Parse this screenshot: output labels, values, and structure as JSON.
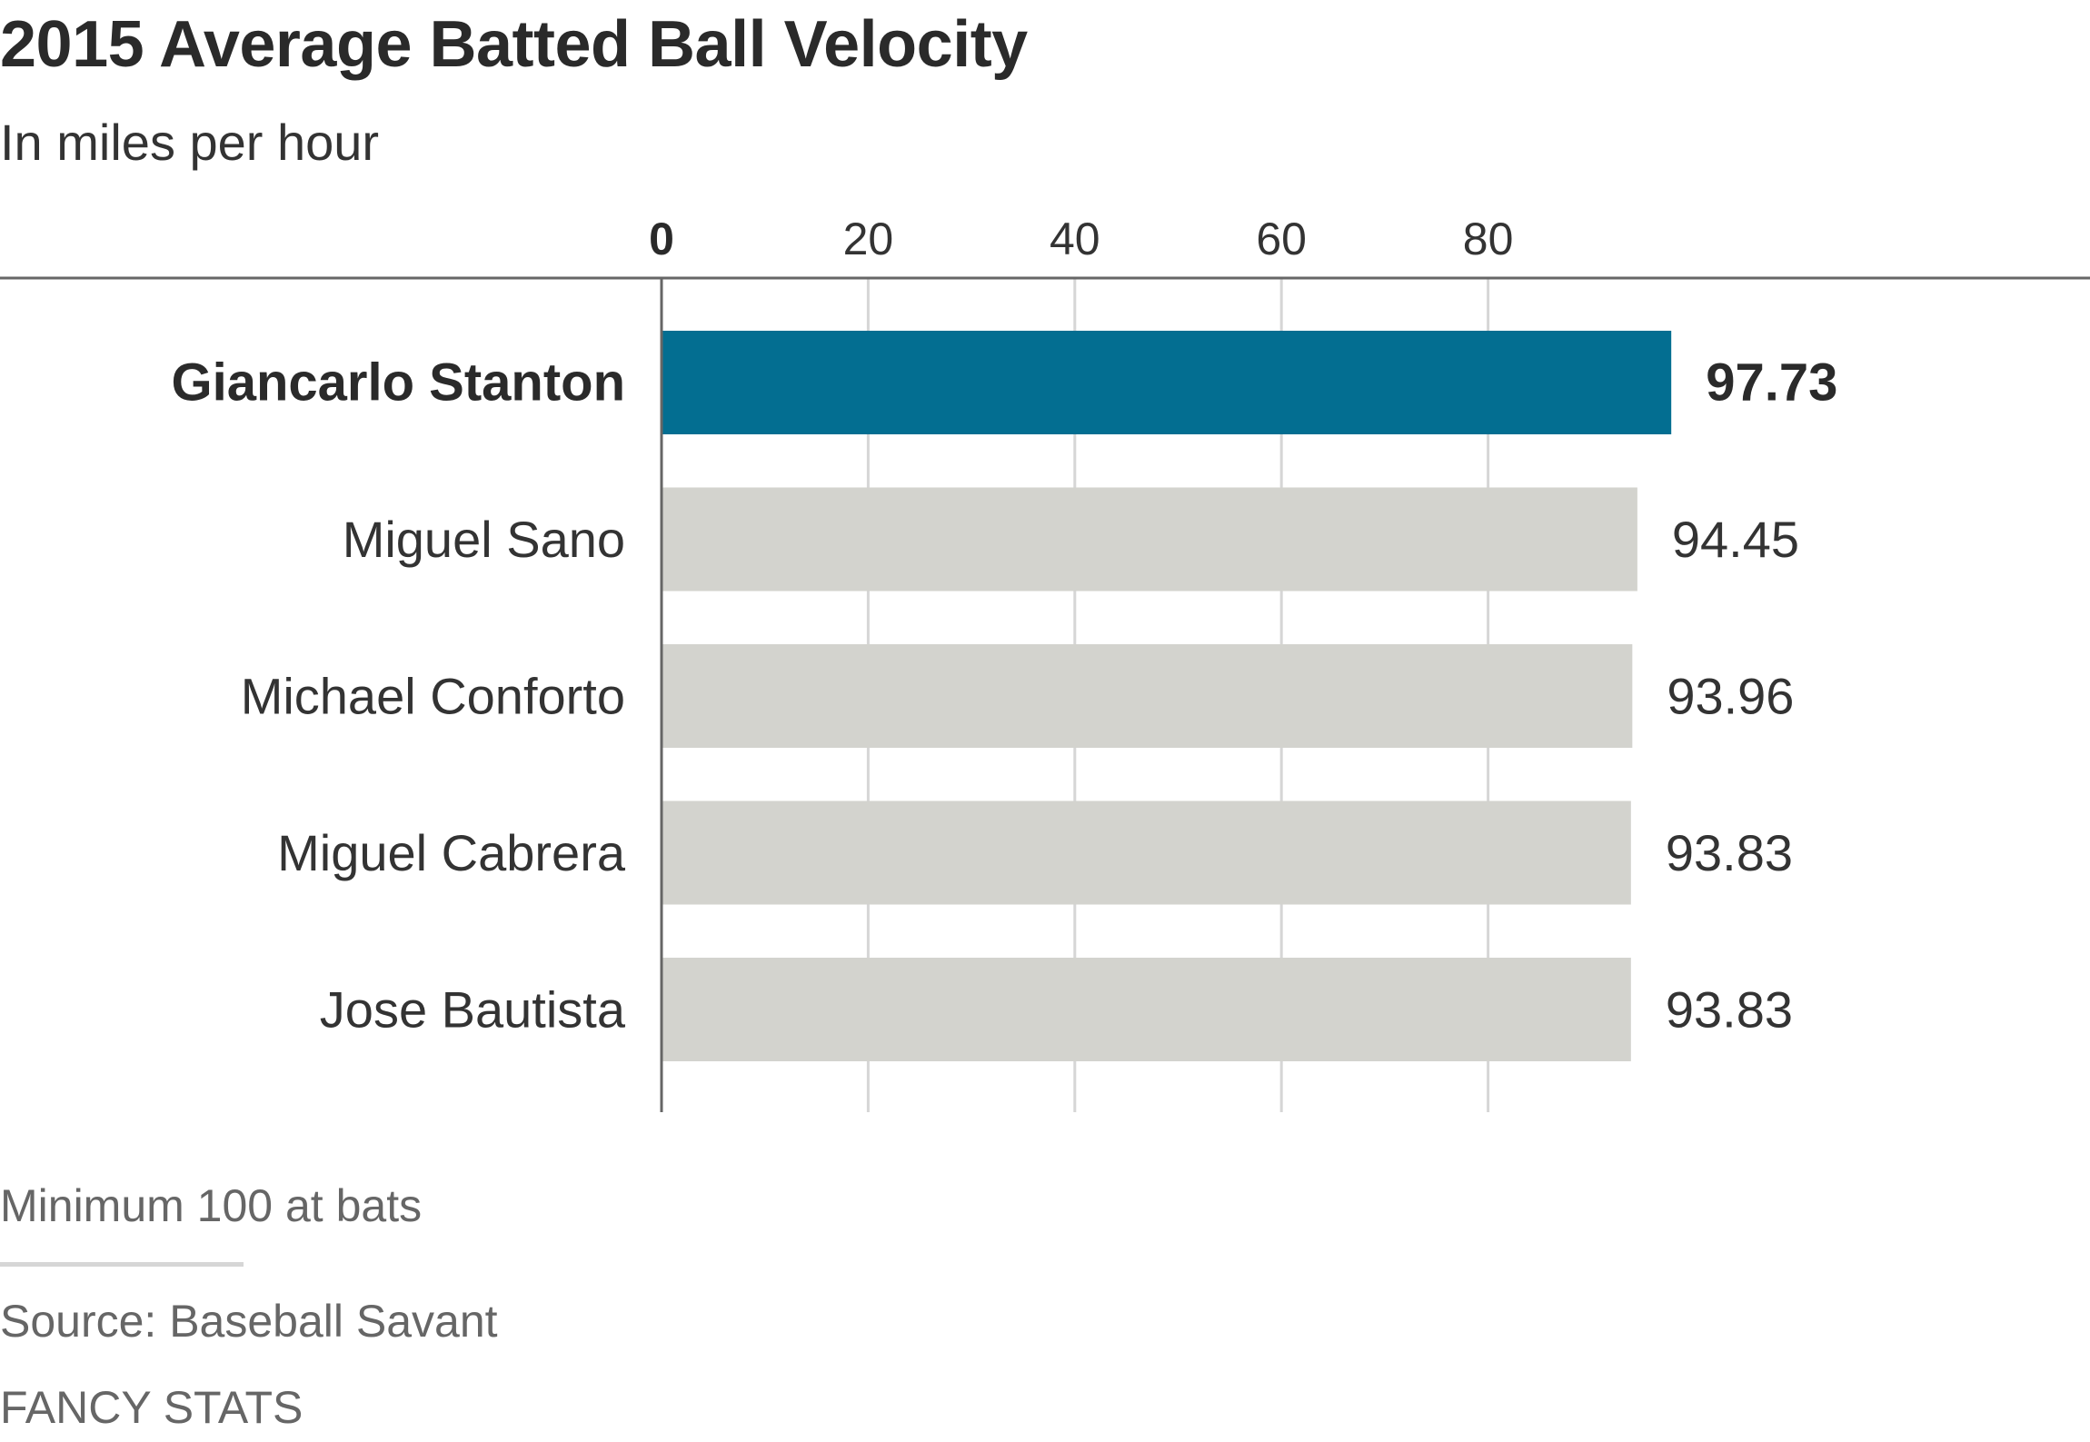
{
  "header": {
    "title": "2015 Average Batted Ball Velocity",
    "subtitle": "In miles per hour"
  },
  "footer": {
    "note": "Minimum 100 at bats",
    "source": "Source: Baseball Savant",
    "credit": "FANCY STATS"
  },
  "colors": {
    "highlight": "#036e91",
    "bar": "#d3d3ce",
    "grid": "#d6d6d6",
    "axis": "#666666",
    "text": "#333333"
  },
  "chart_data": {
    "type": "bar",
    "orientation": "horizontal",
    "title": "2015 Average Batted Ball Velocity",
    "subtitle": "In miles per hour",
    "categories": [
      "Giancarlo Stanton",
      "Miguel Sano",
      "Michael Conforto",
      "Miguel Cabrera",
      "Jose Bautista"
    ],
    "values": [
      97.73,
      94.45,
      93.96,
      93.83,
      93.83
    ],
    "value_labels": [
      "97.73",
      "94.45",
      "93.96",
      "93.83",
      "93.83"
    ],
    "highlighted_index": 0,
    "xticks": [
      0,
      20,
      40,
      60,
      80
    ],
    "xlim": [
      0,
      100
    ],
    "grid": true,
    "xaxis_position": "top"
  }
}
